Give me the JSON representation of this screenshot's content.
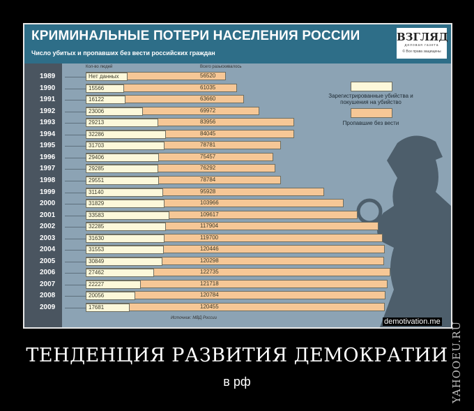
{
  "poster": {
    "headline": "ТЕНДЕНЦИЯ РАЗВИТИЯ ДЕМОКРАТИИ",
    "subline": "в рф",
    "watermark": "demotivation.me",
    "side_watermark": "YAHOOEU.RU"
  },
  "logo": {
    "name": "ВЗГЛЯД",
    "tagline": "деловая газета",
    "rights": "© Все права защищены"
  },
  "chart_data": {
    "type": "bar",
    "orientation": "horizontal",
    "title": "КРИМИНАЛЬНЫЕ ПОТЕРИ НАСЕЛЕНИЯ РОССИИ",
    "subtitle": "Число убитых и пропавших без вести российских граждан",
    "column_headers": [
      "Кол-во людей",
      "Всего разыскивалось"
    ],
    "categories": [
      "1989",
      "1990",
      "1991",
      "1992",
      "1993",
      "1994",
      "1995",
      "1996",
      "1997",
      "1998",
      "1999",
      "2000",
      "2001",
      "2002",
      "2003",
      "2004",
      "2005",
      "2006",
      "2007",
      "2008",
      "2009"
    ],
    "series": [
      {
        "name": "Зарегистрированные убийства и покушения на убийство",
        "color": "#fcf8da",
        "values": [
          null,
          15566,
          16122,
          23006,
          29213,
          32286,
          31703,
          29406,
          29285,
          29551,
          31140,
          31829,
          33583,
          32285,
          31630,
          31553,
          30849,
          27462,
          22227,
          20056,
          17681
        ],
        "labels": [
          "Нет данных",
          "15566",
          "16122",
          "23006",
          "29213",
          "32286",
          "31703",
          "29406",
          "29285",
          "29551",
          "31140",
          "31829",
          "33583",
          "32285",
          "31630",
          "31553",
          "30849",
          "27462",
          "22227",
          "20056",
          "17681"
        ]
      },
      {
        "name": "Пропавшие без вести",
        "color": "#f6c796",
        "values": [
          56520,
          61035,
          63660,
          69972,
          83956,
          84045,
          78781,
          75457,
          76292,
          78784,
          95928,
          103966,
          109617,
          117904,
          119700,
          120446,
          120298,
          122735,
          121718,
          120784,
          120455
        ]
      }
    ],
    "source": "Источник: МВД России",
    "legend_position": "right"
  }
}
